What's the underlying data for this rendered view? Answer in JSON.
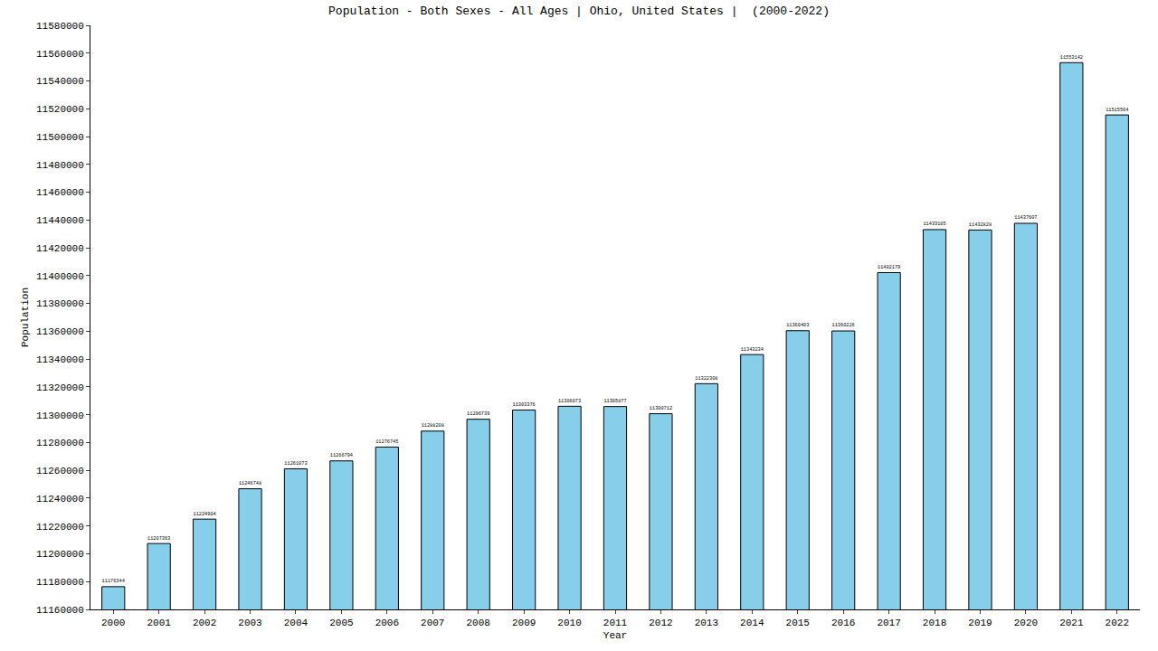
{
  "chart_data": {
    "type": "bar",
    "title": "Population - Both Sexes - All Ages | Ohio, United States |  (2000-2022)",
    "x_label": "Year",
    "y_label": "Population",
    "categories": [
      "2000",
      "2001",
      "2002",
      "2003",
      "2004",
      "2005",
      "2006",
      "2007",
      "2008",
      "2009",
      "2010",
      "2011",
      "2012",
      "2013",
      "2014",
      "2015",
      "2016",
      "2017",
      "2018",
      "2019",
      "2020",
      "2021",
      "2022"
    ],
    "values": [
      11176344,
      11207363,
      11224904,
      11246748,
      11261073,
      11266794,
      11276745,
      11288208,
      11296739,
      11303376,
      11306073,
      11305877,
      11300712,
      11322308,
      11343234,
      11360403,
      11360226,
      11402179,
      11433105,
      11432828,
      11437607,
      11553142,
      11515564
    ],
    "color": "#87ceeb",
    "ylim": [
      11160000,
      11580000
    ],
    "yticks": [
      11160000,
      11180000,
      11200000,
      11220000,
      11240000,
      11260000,
      11280000,
      11300000,
      11320000,
      11340000,
      11360000,
      11380000,
      11400000,
      11420000,
      11440000,
      11460000,
      11480000,
      11500000,
      11520000,
      11540000,
      11560000,
      11580000
    ],
    "grid": false,
    "data_labels": true
  }
}
